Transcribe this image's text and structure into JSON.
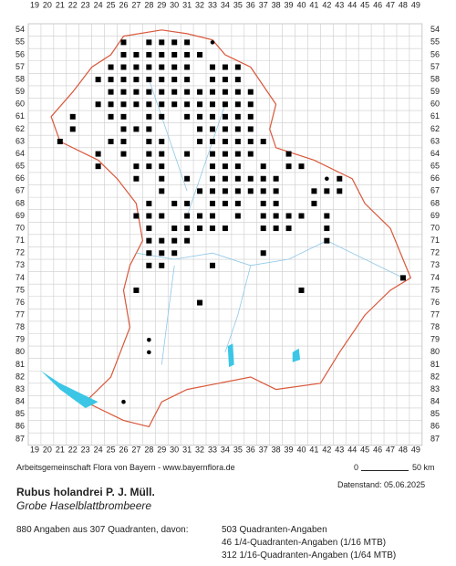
{
  "map": {
    "columns": [
      19,
      20,
      21,
      22,
      23,
      24,
      25,
      26,
      27,
      28,
      29,
      30,
      31,
      32,
      33,
      34,
      35,
      36,
      37,
      38,
      39,
      40,
      41,
      42,
      43,
      44,
      45,
      46,
      47,
      48,
      49
    ],
    "rows": [
      54,
      55,
      56,
      57,
      58,
      59,
      60,
      61,
      62,
      63,
      64,
      65,
      66,
      67,
      68,
      69,
      70,
      71,
      72,
      73,
      74,
      75,
      76,
      77,
      78,
      79,
      80,
      81,
      82,
      83,
      84,
      85,
      86,
      87
    ],
    "squares": [
      {
        "row": 55,
        "cols": [
          26,
          28,
          29,
          30,
          31
        ]
      },
      {
        "row": 56,
        "cols": [
          26,
          27,
          28,
          29,
          30,
          31,
          32
        ]
      },
      {
        "row": 57,
        "cols": [
          25,
          26,
          27,
          28,
          29,
          30,
          31,
          33,
          34,
          35
        ]
      },
      {
        "row": 58,
        "cols": [
          24,
          25,
          26,
          27,
          28,
          29,
          30,
          31,
          33,
          34,
          35
        ]
      },
      {
        "row": 59,
        "cols": [
          25,
          26,
          27,
          28,
          29,
          30,
          31,
          32,
          33,
          34,
          35,
          36
        ]
      },
      {
        "row": 60,
        "cols": [
          24,
          25,
          26,
          27,
          28,
          29,
          30,
          31,
          32,
          33,
          34,
          35,
          36
        ]
      },
      {
        "row": 61,
        "cols": [
          22,
          25,
          26,
          28,
          29,
          31,
          32,
          33,
          34,
          35,
          36
        ]
      },
      {
        "row": 62,
        "cols": [
          22,
          26,
          27,
          28,
          32,
          33,
          34,
          35,
          36
        ]
      },
      {
        "row": 63,
        "cols": [
          21,
          25,
          26,
          28,
          29,
          32,
          33,
          34,
          35,
          36,
          37
        ]
      },
      {
        "row": 64,
        "cols": [
          24,
          26,
          28,
          29,
          31,
          33,
          34,
          35,
          36,
          39
        ]
      },
      {
        "row": 65,
        "cols": [
          24,
          27,
          28,
          29,
          33,
          34,
          35,
          37,
          39,
          40
        ]
      },
      {
        "row": 66,
        "cols": [
          27,
          29,
          31,
          33,
          34,
          35,
          36,
          37,
          38,
          43
        ]
      },
      {
        "row": 67,
        "cols": [
          29,
          32,
          33,
          34,
          35,
          36,
          37,
          38,
          41,
          42,
          43
        ]
      },
      {
        "row": 68,
        "cols": [
          28,
          30,
          31,
          33,
          34,
          35,
          37,
          38,
          41
        ]
      },
      {
        "row": 69,
        "cols": [
          27,
          28,
          29,
          31,
          32,
          33,
          35,
          37,
          38,
          39,
          40,
          42
        ]
      },
      {
        "row": 70,
        "cols": [
          28,
          30,
          31,
          32,
          33,
          34,
          37,
          38,
          39,
          42
        ]
      },
      {
        "row": 71,
        "cols": [
          28,
          29,
          30,
          31,
          42
        ]
      },
      {
        "row": 72,
        "cols": [
          28,
          29,
          30,
          37
        ]
      },
      {
        "row": 73,
        "cols": [
          28,
          29,
          33
        ]
      },
      {
        "row": 74,
        "cols": [
          48
        ]
      },
      {
        "row": 75,
        "cols": [
          27,
          40
        ]
      },
      {
        "row": 76,
        "cols": [
          32
        ]
      }
    ],
    "dots": [
      {
        "row": 55,
        "cols": [
          33
        ]
      },
      {
        "row": 66,
        "cols": [
          42
        ]
      },
      {
        "row": 79,
        "cols": [
          28
        ]
      },
      {
        "row": 80,
        "cols": [
          28
        ]
      },
      {
        "row": 84,
        "cols": [
          26
        ]
      }
    ],
    "credit": "Arbeitsgemeinschaft Flora von Bayern - www.bayernflora.de",
    "scale_start": "0",
    "scale_end": "50 km",
    "date": "Datenstand: 05.06.2025",
    "species": "Rubus holandrei P. J. Müll.",
    "common_name": "Grobe Haselblattbrombeere",
    "summary": "880 Angaben aus 307 Quadranten, davon:",
    "counts": [
      "503 Quadranten-Angaben",
      "46 1/4-Quadranten-Angaben (1/16 MTB)",
      "312 1/16-Quadranten-Angaben (1/64 MTB)"
    ]
  }
}
